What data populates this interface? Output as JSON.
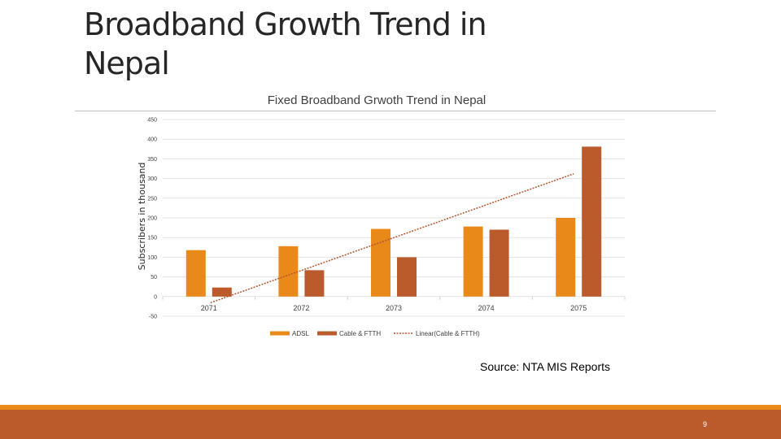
{
  "slide": {
    "title": "Broadband Growth Trend in Nepal",
    "source": "Source: NTA MIS Reports",
    "page_number": "9"
  },
  "colors": {
    "adsl": "#e8891a",
    "cable": "#bb5a2b",
    "trend": "#b5542a",
    "footer_thin": "#e8891a",
    "footer_thick": "#bb5a2b"
  },
  "chart_data": {
    "type": "bar",
    "title": "Fixed Broadband Grwoth Trend in Nepal",
    "xlabel": "",
    "ylabel": "Subscribers in thousand",
    "categories": [
      "2071",
      "2072",
      "2073",
      "2074",
      "2075"
    ],
    "series": [
      {
        "name": "ADSL",
        "values": [
          118,
          128,
          172,
          178,
          200
        ]
      },
      {
        "name": "Cable & FTTH",
        "values": [
          23,
          67,
          100,
          170,
          381
        ]
      }
    ],
    "trendline": {
      "name": "Linear(Cable & FTTH)",
      "of_series": "Cable & FTTH",
      "type": "linear"
    },
    "ylim": [
      -50,
      450
    ],
    "yticks": [
      -50,
      0,
      50,
      100,
      150,
      200,
      250,
      300,
      350,
      400,
      450
    ],
    "grid": true,
    "legend": "bottom"
  }
}
